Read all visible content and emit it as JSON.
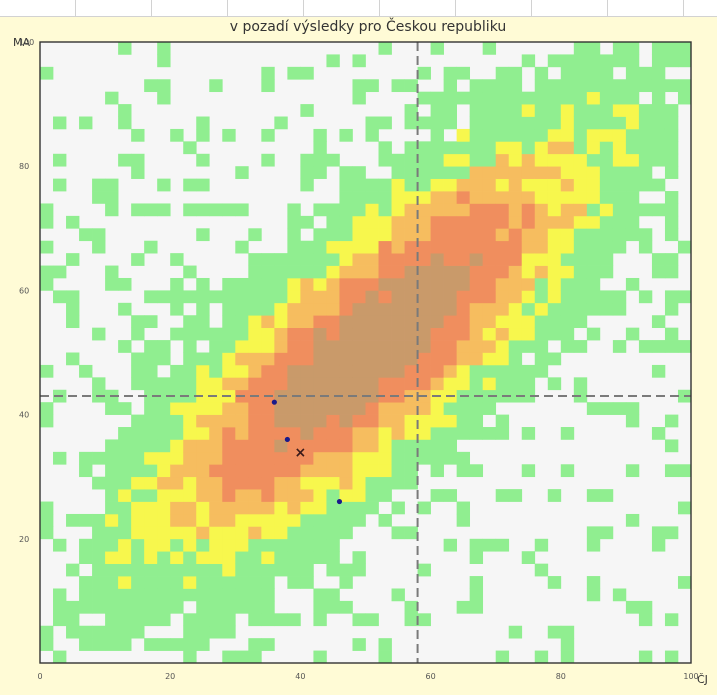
{
  "chart_data": {
    "type": "heatmap",
    "title": "v pozadí výsledky pro Českou republiku",
    "xlabel": "ČJ",
    "ylabel": "MA",
    "xlim": [
      0,
      100
    ],
    "ylim": [
      0,
      100
    ],
    "x_ticks": [
      "0",
      "20",
      "40",
      "60",
      "80",
      "100"
    ],
    "y_ticks": [
      "20",
      "40",
      "60",
      "80",
      "100"
    ],
    "grid_cells": 50,
    "colors": {
      "background": "#f6f6f6",
      "level_1": "#90ee90",
      "level_2": "#f7f74d",
      "level_3": "#f6bd5f",
      "level_4": "#f08e5e",
      "level_5": "#c99a6a",
      "reference_line": "#7a7a7a",
      "frame": "#333333"
    },
    "reference_lines": {
      "x": 58,
      "y": 43
    },
    "points": [
      {
        "x": 36,
        "y": 42,
        "color": "#1a1a8a",
        "marker": "dot"
      },
      {
        "x": 38,
        "y": 36,
        "color": "#1a1a8a",
        "marker": "dot"
      },
      {
        "x": 46,
        "y": 26,
        "color": "#1a1a8a",
        "marker": "dot"
      },
      {
        "x": 40,
        "y": 34,
        "color": "#3a1a1a",
        "marker": "cross",
        "label": "×"
      }
    ]
  }
}
